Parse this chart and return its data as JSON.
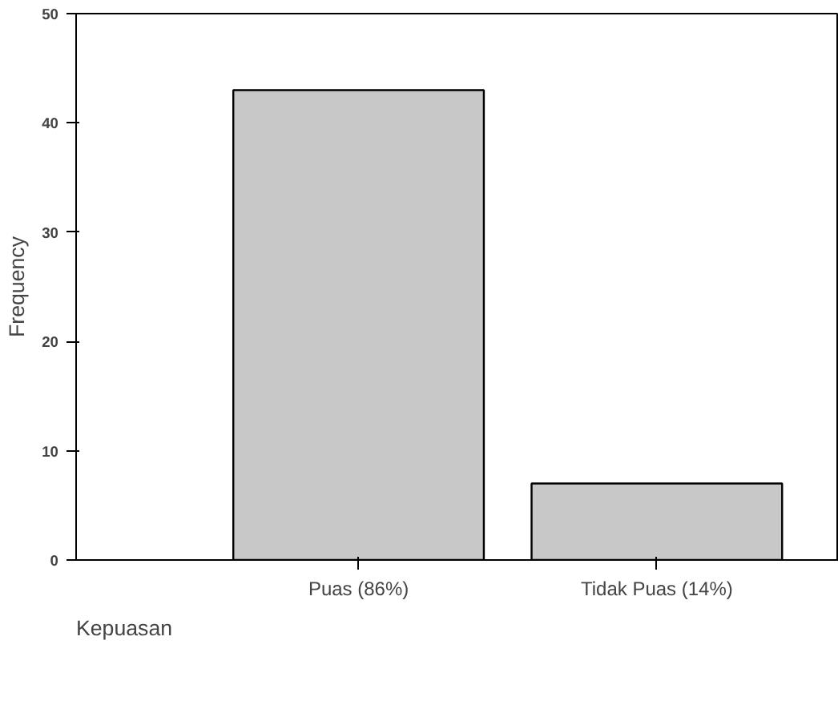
{
  "chart_data": {
    "type": "bar",
    "categories": [
      "Puas (86%)",
      "Tidak Puas (14%)"
    ],
    "values": [
      43,
      7
    ],
    "color": "#c8c8c8",
    "xlabel": "Kepuasan",
    "ylabel": "Frequency",
    "ylim": [
      0,
      50
    ],
    "yticks": [
      0,
      10,
      20,
      30,
      40,
      50
    ],
    "grid": false
  }
}
